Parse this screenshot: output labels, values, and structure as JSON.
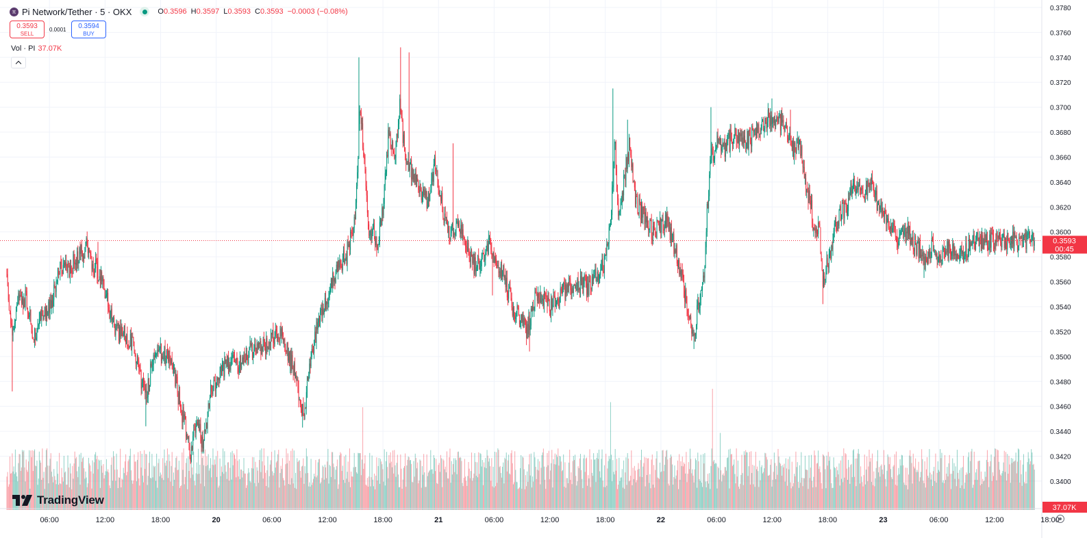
{
  "header": {
    "symbol_title": "Pi Network/Tether · 5 · OKX",
    "open_label": "O",
    "open": "0.3596",
    "high_label": "H",
    "high": "0.3597",
    "low_label": "L",
    "low": "0.3593",
    "close_label": "C",
    "close": "0.3593",
    "change": "−0.0003 (−0.08%)"
  },
  "trade": {
    "sell_price": "0.3593",
    "sell_label": "SELL",
    "spread": "0.0001",
    "buy_price": "0.3594",
    "buy_label": "BUY"
  },
  "volume_legend": {
    "label": "Vol · PI",
    "value": "37.07K"
  },
  "brand": {
    "logo_text": "TradingView"
  },
  "colors": {
    "up": "#089981",
    "down": "#f23645",
    "sell": "#f23645",
    "buy": "#2962ff",
    "grid": "#f0f3fa"
  },
  "icons": {
    "symbol": "pi-network-icon",
    "status": "market-open-dot-icon",
    "collapse": "chevron-up-icon",
    "settings": "gear-icon",
    "logo": "tradingview-logo-icon"
  },
  "chart_data": {
    "type": "candlestick",
    "timeframe": "5",
    "y_axis": {
      "ylim": [
        0.3378,
        0.3786
      ],
      "ticks": [
        "0.3780",
        "0.3760",
        "0.3740",
        "0.3720",
        "0.3700",
        "0.3680",
        "0.3660",
        "0.3640",
        "0.3620",
        "0.3600",
        "0.3580",
        "0.3560",
        "0.3540",
        "0.3520",
        "0.3500",
        "0.3480",
        "0.3460",
        "0.3440",
        "0.3420",
        "0.3400"
      ]
    },
    "x_axis": {
      "ticks": [
        {
          "t": 6,
          "label": "06:00"
        },
        {
          "t": 12,
          "label": "12:00"
        },
        {
          "t": 18,
          "label": "18:00"
        },
        {
          "t": 24,
          "label": "20",
          "bold": true
        },
        {
          "t": 30,
          "label": "06:00"
        },
        {
          "t": 36,
          "label": "12:00"
        },
        {
          "t": 42,
          "label": "18:00"
        },
        {
          "t": 48,
          "label": "21",
          "bold": true
        },
        {
          "t": 54,
          "label": "06:00"
        },
        {
          "t": 60,
          "label": "12:00"
        },
        {
          "t": 66,
          "label": "18:00"
        },
        {
          "t": 72,
          "label": "22",
          "bold": true
        },
        {
          "t": 78,
          "label": "06:00"
        },
        {
          "t": 84,
          "label": "12:00"
        },
        {
          "t": 90,
          "label": "18:00"
        },
        {
          "t": 96,
          "label": "23",
          "bold": true
        },
        {
          "t": 102,
          "label": "06:00"
        },
        {
          "t": 108,
          "label": "12:00"
        },
        {
          "t": 114,
          "label": "18:00"
        }
      ]
    },
    "current_price": {
      "value": 0.3593,
      "label": "0.3593",
      "countdown": "00:45"
    },
    "volume_label": "37.07K",
    "price_path": [
      [
        1.4,
        0.3562
      ],
      [
        2.0,
        0.3515
      ],
      [
        2.6,
        0.3548
      ],
      [
        3.5,
        0.3545
      ],
      [
        4.3,
        0.3515
      ],
      [
        5.0,
        0.3528
      ],
      [
        6.0,
        0.3538
      ],
      [
        7.0,
        0.3568
      ],
      [
        8.0,
        0.3568
      ],
      [
        9.0,
        0.358
      ],
      [
        10.0,
        0.3588
      ],
      [
        10.6,
        0.3575
      ],
      [
        11.3,
        0.3567
      ],
      [
        12.0,
        0.3552
      ],
      [
        13.0,
        0.3522
      ],
      [
        14.0,
        0.3518
      ],
      [
        15.0,
        0.351
      ],
      [
        16.0,
        0.3475
      ],
      [
        16.5,
        0.347
      ],
      [
        17.3,
        0.3505
      ],
      [
        18.3,
        0.3502
      ],
      [
        19.3,
        0.3495
      ],
      [
        20.0,
        0.3465
      ],
      [
        20.8,
        0.344
      ],
      [
        21.3,
        0.342
      ],
      [
        21.8,
        0.345
      ],
      [
        22.6,
        0.3428
      ],
      [
        23.4,
        0.347
      ],
      [
        24.3,
        0.3488
      ],
      [
        25.3,
        0.3495
      ],
      [
        26.3,
        0.3492
      ],
      [
        27.3,
        0.35
      ],
      [
        28.2,
        0.3508
      ],
      [
        29.0,
        0.3508
      ],
      [
        30.0,
        0.3515
      ],
      [
        31.0,
        0.3518
      ],
      [
        31.7,
        0.3502
      ],
      [
        32.4,
        0.349
      ],
      [
        33.0,
        0.3465
      ],
      [
        33.5,
        0.3455
      ],
      [
        34.0,
        0.349
      ],
      [
        35.0,
        0.3528
      ],
      [
        36.0,
        0.3548
      ],
      [
        37.0,
        0.357
      ],
      [
        38.0,
        0.358
      ],
      [
        39.0,
        0.361
      ],
      [
        39.5,
        0.37
      ],
      [
        40.0,
        0.366
      ],
      [
        40.5,
        0.359
      ],
      [
        41.0,
        0.36
      ],
      [
        41.3,
        0.3585
      ],
      [
        42.0,
        0.362
      ],
      [
        42.6,
        0.368
      ],
      [
        43.3,
        0.366
      ],
      [
        43.8,
        0.37
      ],
      [
        44.5,
        0.3655
      ],
      [
        45.0,
        0.365
      ],
      [
        45.8,
        0.364
      ],
      [
        46.5,
        0.3625
      ],
      [
        47.0,
        0.3625
      ],
      [
        47.6,
        0.3655
      ],
      [
        48.4,
        0.362
      ],
      [
        49.0,
        0.36
      ],
      [
        50.0,
        0.3605
      ],
      [
        51.0,
        0.3588
      ],
      [
        52.0,
        0.357
      ],
      [
        52.8,
        0.358
      ],
      [
        53.6,
        0.359
      ],
      [
        54.4,
        0.3575
      ],
      [
        55.0,
        0.3565
      ],
      [
        56.0,
        0.354
      ],
      [
        57.0,
        0.3528
      ],
      [
        57.6,
        0.352
      ],
      [
        58.4,
        0.355
      ],
      [
        59.3,
        0.3545
      ],
      [
        60.3,
        0.354
      ],
      [
        61.3,
        0.355
      ],
      [
        62.3,
        0.3558
      ],
      [
        63.3,
        0.356
      ],
      [
        64.3,
        0.3555
      ],
      [
        65.3,
        0.357
      ],
      [
        66.0,
        0.3575
      ],
      [
        66.6,
        0.361
      ],
      [
        67.0,
        0.3675
      ],
      [
        67.4,
        0.3615
      ],
      [
        68.0,
        0.364
      ],
      [
        68.6,
        0.367
      ],
      [
        69.2,
        0.3625
      ],
      [
        70.0,
        0.3615
      ],
      [
        71.0,
        0.36
      ],
      [
        72.0,
        0.3605
      ],
      [
        72.6,
        0.361
      ],
      [
        73.4,
        0.359
      ],
      [
        74.0,
        0.357
      ],
      [
        74.6,
        0.355
      ],
      [
        75.2,
        0.353
      ],
      [
        75.6,
        0.3515
      ],
      [
        76.0,
        0.354
      ],
      [
        76.6,
        0.356
      ],
      [
        77.0,
        0.362
      ],
      [
        77.4,
        0.366
      ],
      [
        78.0,
        0.367
      ],
      [
        79.0,
        0.3668
      ],
      [
        80.0,
        0.368
      ],
      [
        81.0,
        0.3672
      ],
      [
        82.0,
        0.3678
      ],
      [
        83.0,
        0.3688
      ],
      [
        84.0,
        0.3692
      ],
      [
        85.0,
        0.3688
      ],
      [
        85.6,
        0.368
      ],
      [
        86.3,
        0.3665
      ],
      [
        87.0,
        0.367
      ],
      [
        87.6,
        0.364
      ],
      [
        88.2,
        0.362
      ],
      [
        88.6,
        0.3595
      ],
      [
        89.1,
        0.3605
      ],
      [
        89.5,
        0.356
      ],
      [
        90.0,
        0.3575
      ],
      [
        90.6,
        0.3595
      ],
      [
        91.3,
        0.3615
      ],
      [
        92.0,
        0.362
      ],
      [
        92.6,
        0.3635
      ],
      [
        93.3,
        0.364
      ],
      [
        94.0,
        0.3632
      ],
      [
        94.6,
        0.3638
      ],
      [
        95.3,
        0.3625
      ],
      [
        96.0,
        0.3615
      ],
      [
        96.8,
        0.3605
      ],
      [
        97.6,
        0.359
      ],
      [
        98.6,
        0.36
      ],
      [
        99.3,
        0.359
      ],
      [
        100.0,
        0.3585
      ],
      [
        100.6,
        0.3575
      ],
      [
        101.3,
        0.359
      ],
      [
        102.0,
        0.358
      ],
      [
        103.0,
        0.3585
      ],
      [
        104.0,
        0.358
      ],
      [
        105.0,
        0.3585
      ],
      [
        106.0,
        0.3593
      ]
    ],
    "events": [
      [
        2.0,
        0.3472
      ],
      [
        11.2,
        0.3592
      ],
      [
        16.4,
        0.3444
      ],
      [
        21.3,
        0.3415
      ],
      [
        22.6,
        0.3424
      ],
      [
        31.0,
        0.3522
      ],
      [
        33.3,
        0.3443
      ],
      [
        39.4,
        0.374
      ],
      [
        43.9,
        0.3748
      ],
      [
        44.8,
        0.3744
      ],
      [
        49.6,
        0.3671
      ],
      [
        53.8,
        0.3549
      ],
      [
        57.8,
        0.3504
      ],
      [
        66.8,
        0.3715
      ],
      [
        68.4,
        0.369
      ],
      [
        75.6,
        0.3506
      ],
      [
        77.4,
        0.37
      ],
      [
        84.0,
        0.3707
      ],
      [
        86.0,
        0.3698
      ],
      [
        89.5,
        0.3542
      ],
      [
        93.2,
        0.3644
      ],
      [
        100.4,
        0.3563
      ]
    ],
    "volume_spikes": [
      [
        1.7,
        0.52
      ],
      [
        9.2,
        0.54
      ],
      [
        21.1,
        0.38
      ],
      [
        26.9,
        0.38
      ],
      [
        33.1,
        0.38
      ],
      [
        37.6,
        0.38
      ],
      [
        39.1,
        0.42
      ],
      [
        39.8,
        1.0
      ],
      [
        43.9,
        0.54
      ],
      [
        44.4,
        0.55
      ],
      [
        46.1,
        0.48
      ],
      [
        54.4,
        0.6
      ],
      [
        57.1,
        0.52
      ],
      [
        66.6,
        1.05
      ],
      [
        74.3,
        0.52
      ],
      [
        77.6,
        1.18
      ],
      [
        78.4,
        0.75
      ],
      [
        85.3,
        0.45
      ],
      [
        89.1,
        0.4
      ]
    ]
  }
}
